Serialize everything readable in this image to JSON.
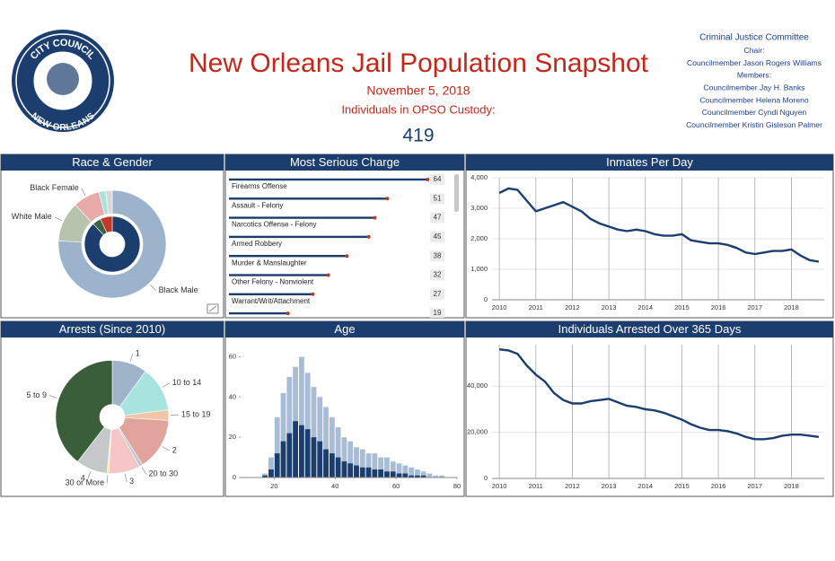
{
  "header": {
    "logo": {
      "top": "CITY COUNCIL",
      "bottom": "NEW ORLEANS"
    },
    "title": "New Orleans Jail Population Snapshot",
    "date": "November 5, 2018",
    "custody_label": "Individuals in OPSO Custody:",
    "custody_count": 419,
    "committee": [
      "Criminal Justice Committee",
      "Chair:",
      "Councilmember Jason Rogers Williams",
      "Members:",
      "Councilmember Jay H. Banks",
      "Councilmember Helena Moreno",
      "Councilmember Cyndi Nguyen",
      "Councilmember Kristin Gisleson Palmer"
    ]
  },
  "chart_data": [
    {
      "type": "donut",
      "title": "Race & Gender",
      "rings": [
        {
          "categories": [
            "Black Male",
            "White Male",
            "Black Female",
            null,
            null
          ],
          "values": [
            76,
            12,
            8,
            2,
            2
          ],
          "colors": [
            "#9db3cc",
            "#b6c4ae",
            "#e8aaa8",
            "#a8e2dc",
            "#d8d8d8"
          ]
        },
        {
          "categories": [
            null,
            null,
            null
          ],
          "values": [
            88,
            5,
            7
          ],
          "colors": [
            "#1b3e6f",
            "#3e6240",
            "#c0392b"
          ]
        }
      ]
    },
    {
      "type": "bar",
      "orientation": "horizontal",
      "title": "Most Serious Charge",
      "categories": [
        "Firearms Offense",
        "Assault - Felony",
        "Narcotics Offense - Felony",
        "Armed Robbery",
        "Murder & Manslaughter",
        "Other Felony - Nonviolent",
        "Warrant/Writ/Attachment",
        null
      ],
      "values": [
        64,
        51,
        47,
        45,
        38,
        32,
        27,
        19
      ],
      "color": "#1b3e6f",
      "xlim": [
        0,
        72
      ]
    },
    {
      "type": "line",
      "title": "Inmates Per Day",
      "color": "#1b3e6f",
      "grid": true,
      "x": [
        2010,
        2010.25,
        2010.5,
        2010.75,
        2011,
        2011.25,
        2011.5,
        2011.75,
        2012,
        2012.25,
        2012.5,
        2012.75,
        2013,
        2013.25,
        2013.5,
        2013.75,
        2014,
        2014.25,
        2014.5,
        2014.75,
        2015,
        2015.25,
        2015.5,
        2015.75,
        2016,
        2016.25,
        2016.5,
        2016.75,
        2017,
        2017.25,
        2017.5,
        2017.75,
        2018,
        2018.25,
        2018.5,
        2018.75
      ],
      "values": [
        3500,
        3650,
        3600,
        3250,
        2900,
        3000,
        3100,
        3200,
        3050,
        2900,
        2650,
        2500,
        2400,
        2300,
        2250,
        2300,
        2250,
        2150,
        2100,
        2100,
        2150,
        1950,
        1900,
        1850,
        1850,
        1800,
        1700,
        1550,
        1500,
        1550,
        1600,
        1600,
        1650,
        1450,
        1300,
        1250
      ],
      "xlim": [
        2009.8,
        2018.9
      ],
      "xticks": [
        2010,
        2011,
        2012,
        2013,
        2014,
        2015,
        2016,
        2017,
        2018
      ],
      "ylim": [
        0,
        4000
      ],
      "yticks": [
        0,
        {
          "value": 1000,
          "label": "1,000"
        },
        {
          "value": 2000,
          "label": "2,000"
        },
        {
          "value": 3000,
          "label": "3,000"
        },
        {
          "value": 4000,
          "label": "4,000"
        }
      ]
    },
    {
      "type": "pie",
      "title": "Arrests (Since 2010)",
      "categories": [
        "1",
        "10 to 14",
        "15 to 19",
        "2",
        "20 to 30",
        "3",
        "30 or More",
        "4",
        "5 to 9"
      ],
      "values": [
        10,
        13,
        3,
        15,
        1,
        9,
        0.5,
        9,
        39.5
      ],
      "colors": [
        "#9fb4c8",
        "#a8e4de",
        "#f2c4a8",
        "#e0a49c",
        "#b9c6cc",
        "#f6c6c6",
        "#f4e8a0",
        "#c4c8c8",
        "#3a5e3a"
      ]
    },
    {
      "type": "histogram",
      "title": "Age",
      "bins": [
        16,
        18,
        20,
        22,
        24,
        26,
        28,
        30,
        32,
        34,
        36,
        38,
        40,
        42,
        44,
        46,
        48,
        50,
        52,
        54,
        56,
        58,
        60,
        62,
        64,
        66,
        68,
        70,
        72,
        74,
        76
      ],
      "series": [
        {
          "color": "#a9bcd6",
          "values": [
            2,
            10,
            30,
            42,
            50,
            55,
            60,
            52,
            45,
            40,
            35,
            30,
            25,
            20,
            18,
            15,
            14,
            12,
            12,
            10,
            10,
            8,
            7,
            6,
            5,
            4,
            3,
            2,
            1,
            1
          ]
        },
        {
          "color": "#1b3e6f",
          "values": [
            1,
            4,
            12,
            18,
            22,
            28,
            26,
            24,
            20,
            18,
            14,
            12,
            10,
            8,
            7,
            6,
            5,
            5,
            4,
            4,
            3,
            3,
            2,
            2,
            1,
            1,
            1,
            0,
            0,
            0
          ]
        }
      ],
      "xlim": [
        9,
        80
      ],
      "xticks": [
        20,
        40,
        60,
        80
      ],
      "ylim": [
        0,
        66
      ],
      "yticks": [
        0,
        20,
        40,
        60
      ]
    },
    {
      "type": "line",
      "title": "Individuals Arrested Over 365 Days",
      "color": "#1b3e6f",
      "grid": true,
      "x": [
        2010,
        2010.25,
        2010.5,
        2010.75,
        2011,
        2011.25,
        2011.5,
        2011.75,
        2012,
        2012.25,
        2012.5,
        2012.75,
        2013,
        2013.25,
        2013.5,
        2013.75,
        2014,
        2014.25,
        2014.5,
        2014.75,
        2015,
        2015.25,
        2015.5,
        2015.75,
        2016,
        2016.25,
        2016.5,
        2016.75,
        2017,
        2017.25,
        2017.5,
        2017.75,
        2018,
        2018.25,
        2018.5,
        2018.75
      ],
      "values": [
        56000,
        55500,
        54000,
        49000,
        45000,
        42000,
        37000,
        34000,
        32500,
        32500,
        33500,
        34000,
        34500,
        33000,
        31500,
        31000,
        30000,
        29500,
        28500,
        27000,
        25500,
        23500,
        22000,
        21000,
        21000,
        20500,
        19500,
        18000,
        17000,
        17000,
        17500,
        18500,
        19000,
        19000,
        18500,
        18000
      ],
      "xlim": [
        2009.8,
        2018.9
      ],
      "xticks": [
        2010,
        2011,
        2012,
        2013,
        2014,
        2015,
        2016,
        2017,
        2018
      ],
      "ylim": [
        0,
        58000
      ],
      "yticks": [
        0,
        {
          "value": 20000,
          "label": "20,000"
        },
        {
          "value": 40000,
          "label": "40,000"
        }
      ]
    }
  ]
}
